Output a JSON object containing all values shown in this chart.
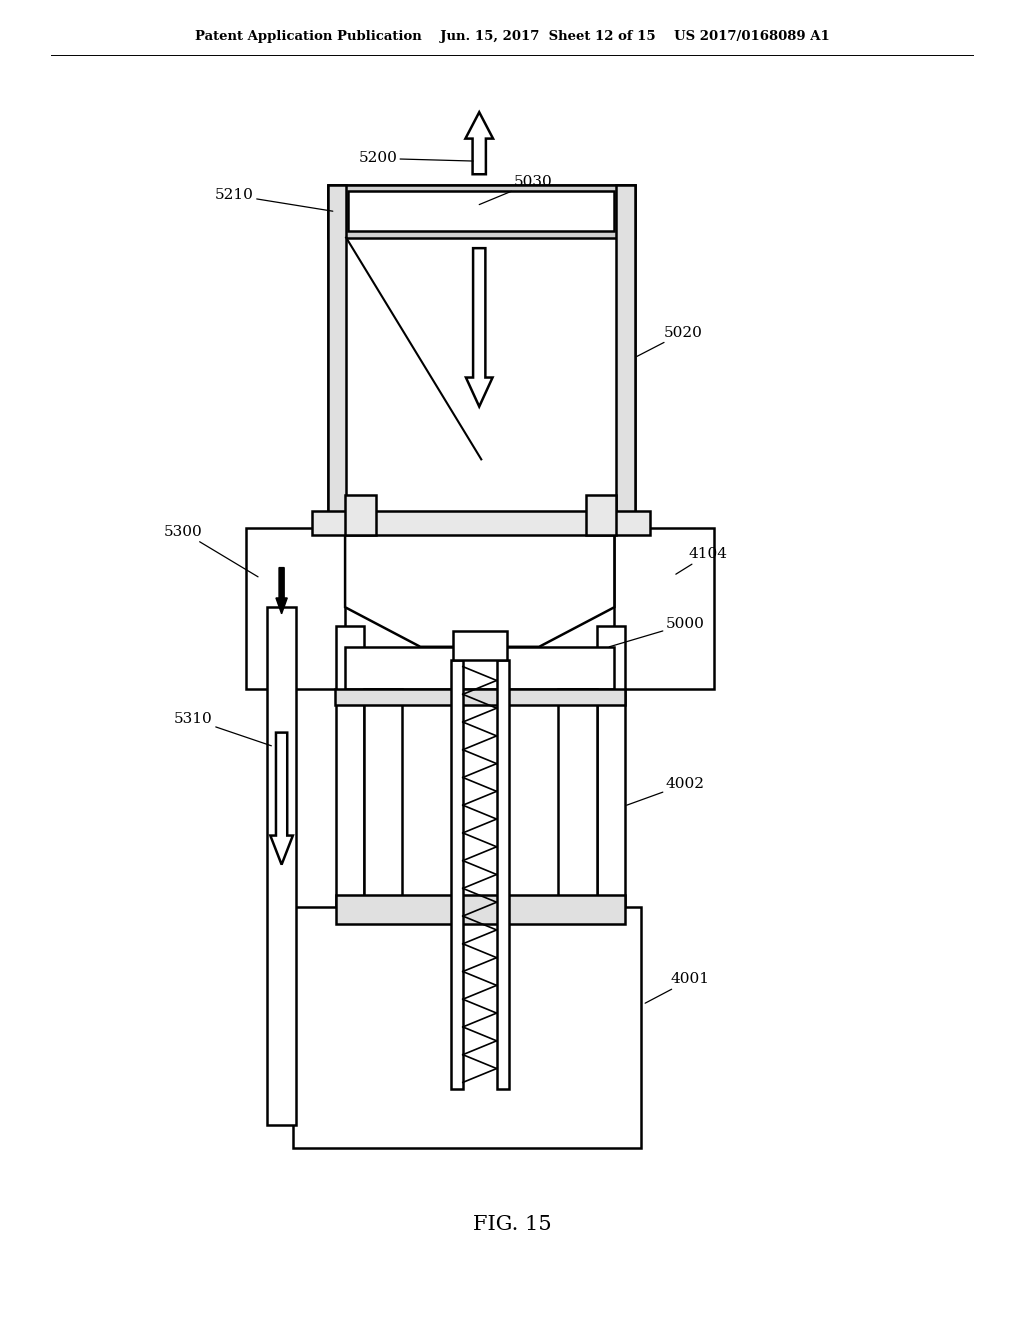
{
  "bg_color": "#ffffff",
  "lc": "#000000",
  "header": "Patent Application Publication    Jun. 15, 2017  Sheet 12 of 15    US 2017/0168089 A1",
  "fig_label": "FIG. 15",
  "lw": 1.8
}
